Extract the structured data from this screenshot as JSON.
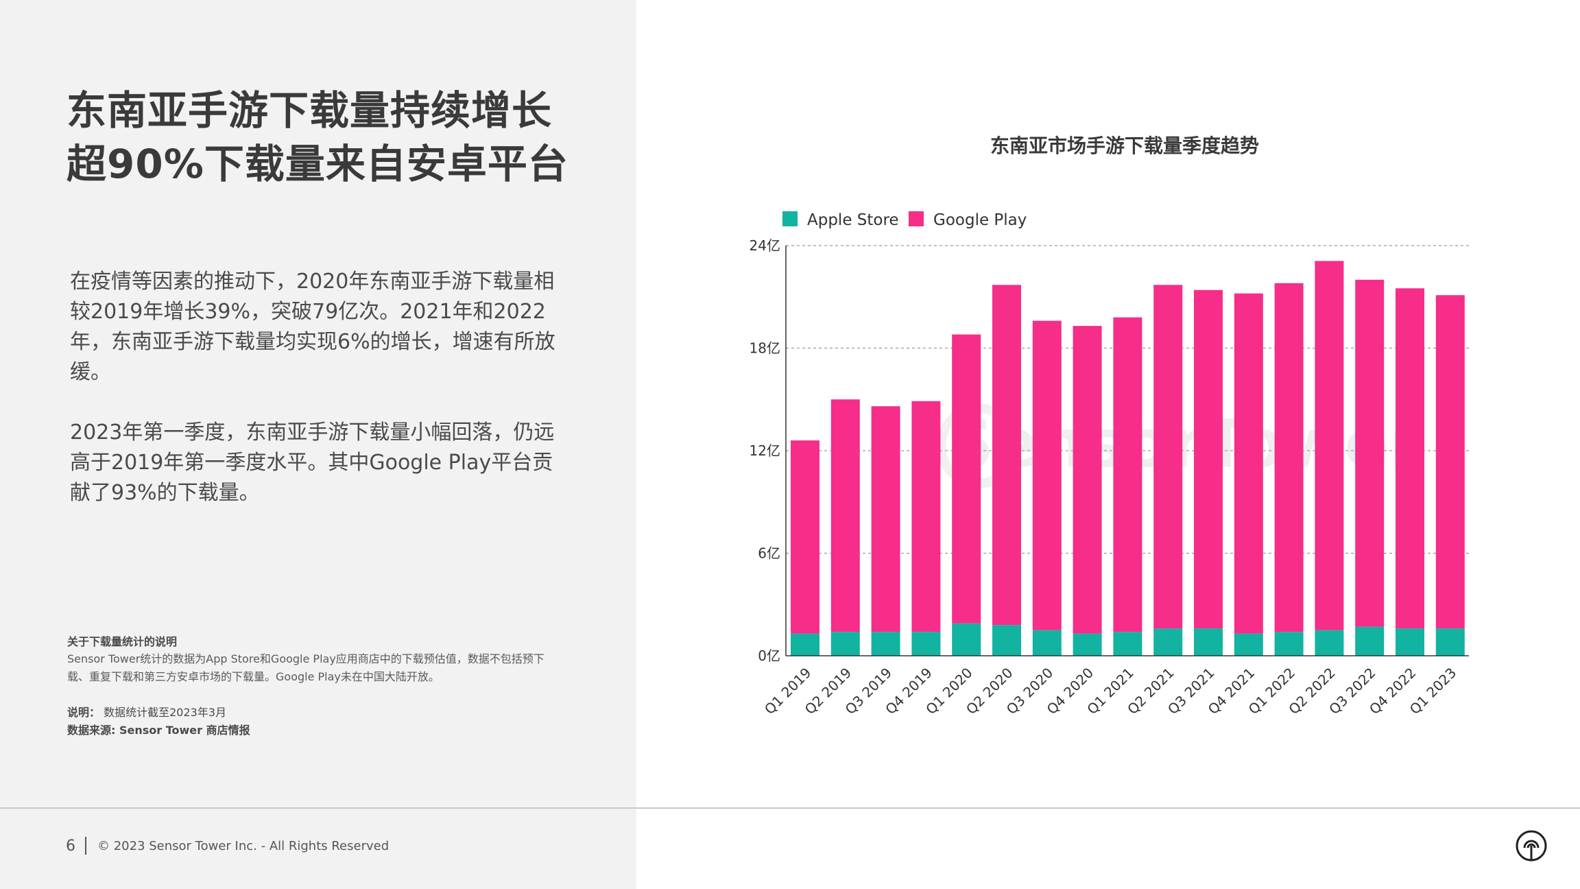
{
  "headline": {
    "line1": "东南亚手游下载量持续增长",
    "line2": "超90%下载量来自安卓平台"
  },
  "paragraphs": [
    "在疫情等因素的推动下，2020年东南亚手游下载量相较2019年增长39%，突破79亿次。2021年和2022年，东南亚手游下载量均实现6%的增长，增速有所放缓。",
    "2023年第一季度，东南亚手游下载量小幅回落，仍远高于2019年第一季度水平。其中Google  Play平台贡献了93%的下载量。"
  ],
  "notes": {
    "title": "关于下载量统计的说明",
    "text": "Sensor  Tower统计的数据为App  Store和Google  Play应用商店中的下载预估值，数据不包括预下载、重复下载和第三方安卓市场的下载量。Google Play未在中国大陆开放。",
    "explain_label": "说明：",
    "explain_value": "数据统计截至2023年3月",
    "source_label": "数据来源: Sensor Tower 商店情报"
  },
  "footer": {
    "page_number": "6",
    "copyright": "© 2023 Sensor Tower Inc. - All Rights Reserved"
  },
  "colors": {
    "apple": "#12b3a0",
    "google": "#f72d8a",
    "grid": "#9a9a9a",
    "axis": "#333333"
  },
  "chart_data": {
    "type": "bar",
    "stacked": true,
    "title": "东南亚市场手游下载量季度趋势",
    "watermark": "SensorTower",
    "xlabel": "",
    "ylabel": "",
    "ylim": [
      0,
      24
    ],
    "yticks": [
      0,
      6,
      12,
      18,
      24
    ],
    "ytick_labels": [
      "0亿",
      "6亿",
      "12亿",
      "18亿",
      "24亿"
    ],
    "grid": true,
    "legend_position": "top-left",
    "categories": [
      "Q1 2019",
      "Q2 2019",
      "Q3 2019",
      "Q4 2019",
      "Q1 2020",
      "Q2 2020",
      "Q3 2020",
      "Q4 2020",
      "Q1 2021",
      "Q2 2021",
      "Q3 2021",
      "Q4 2021",
      "Q1 2022",
      "Q2 2022",
      "Q3 2022",
      "Q4 2022",
      "Q1 2023"
    ],
    "series": [
      {
        "name": "Apple Store",
        "color": "#12b3a0",
        "values": [
          1.3,
          1.4,
          1.4,
          1.4,
          1.9,
          1.8,
          1.5,
          1.3,
          1.4,
          1.6,
          1.6,
          1.3,
          1.4,
          1.5,
          1.7,
          1.6,
          1.6
        ]
      },
      {
        "name": "Google Play",
        "color": "#f72d8a",
        "values": [
          11.3,
          13.6,
          13.2,
          13.5,
          16.9,
          19.9,
          18.1,
          18.0,
          18.4,
          20.1,
          19.8,
          19.9,
          20.4,
          21.6,
          20.3,
          19.9,
          19.5
        ]
      }
    ]
  }
}
